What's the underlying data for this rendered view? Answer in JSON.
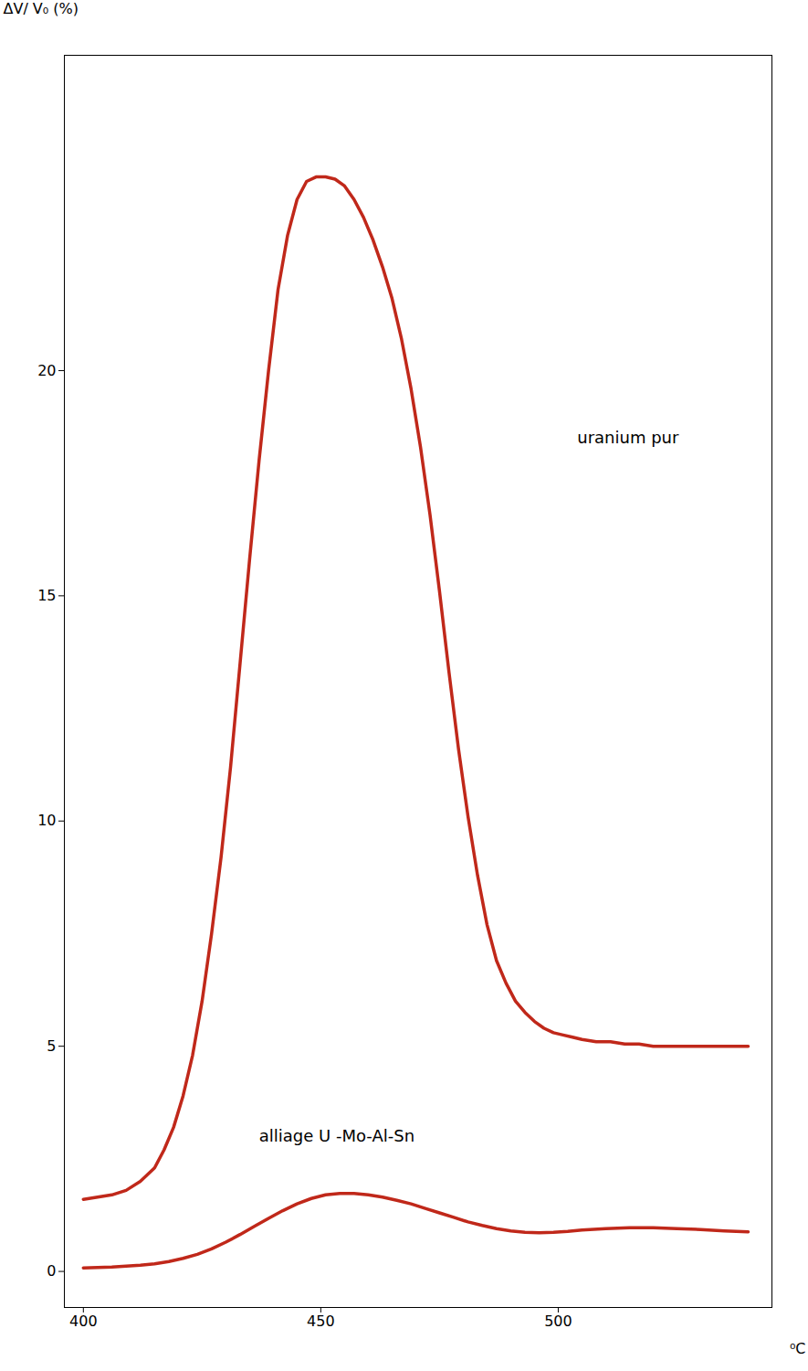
{
  "chart_data": {
    "type": "line",
    "xlabel": "⁰C",
    "ylabel": "ΔV/ V₀ (%)",
    "xlim": [
      396,
      545
    ],
    "xticks": [
      400,
      450,
      500
    ],
    "ylim": [
      -0.8,
      27
    ],
    "yticks": [
      0,
      5,
      10,
      15,
      20
    ],
    "grid": false,
    "series": [
      {
        "name": "uranium pur",
        "color": "#C0281A",
        "label": {
          "x": 504,
          "y": 18.5
        },
        "x": [
          400,
          403,
          406,
          409,
          412,
          415,
          417,
          419,
          421,
          423,
          425,
          427,
          429,
          431,
          433,
          435,
          437,
          439,
          441,
          443,
          445,
          447,
          449,
          451,
          453,
          455,
          457,
          459,
          461,
          463,
          465,
          467,
          469,
          471,
          473,
          475,
          477,
          479,
          481,
          483,
          485,
          487,
          489,
          491,
          493,
          495,
          497,
          499,
          501,
          503,
          505,
          508,
          511,
          514,
          517,
          520,
          525,
          530,
          535,
          540
        ],
        "values": [
          1.6,
          1.65,
          1.7,
          1.8,
          2.0,
          2.3,
          2.7,
          3.2,
          3.9,
          4.8,
          6.0,
          7.5,
          9.2,
          11.2,
          13.5,
          15.8,
          18.0,
          20.0,
          21.8,
          23.0,
          23.8,
          24.2,
          24.3,
          24.3,
          24.25,
          24.1,
          23.8,
          23.4,
          22.9,
          22.3,
          21.6,
          20.7,
          19.6,
          18.3,
          16.8,
          15.1,
          13.3,
          11.6,
          10.1,
          8.8,
          7.7,
          6.9,
          6.4,
          6.0,
          5.75,
          5.55,
          5.4,
          5.3,
          5.25,
          5.2,
          5.15,
          5.1,
          5.1,
          5.05,
          5.05,
          5.0,
          5.0,
          5.0,
          5.0,
          5.0
        ]
      },
      {
        "name": "alliage U -Mo-Al-Sn",
        "color": "#C0281A",
        "label": {
          "x": 437,
          "y": 3.0
        },
        "x": [
          400,
          403,
          406,
          409,
          412,
          415,
          418,
          421,
          424,
          427,
          430,
          433,
          436,
          439,
          442,
          445,
          448,
          451,
          454,
          457,
          460,
          463,
          466,
          469,
          472,
          475,
          478,
          481,
          484,
          487,
          490,
          493,
          496,
          499,
          502,
          505,
          510,
          515,
          520,
          525,
          530,
          535,
          540
        ],
        "values": [
          0.08,
          0.09,
          0.1,
          0.12,
          0.14,
          0.17,
          0.22,
          0.29,
          0.38,
          0.5,
          0.65,
          0.82,
          1.0,
          1.18,
          1.35,
          1.5,
          1.62,
          1.7,
          1.73,
          1.73,
          1.7,
          1.65,
          1.58,
          1.5,
          1.4,
          1.3,
          1.2,
          1.1,
          1.02,
          0.95,
          0.9,
          0.87,
          0.86,
          0.87,
          0.89,
          0.92,
          0.95,
          0.97,
          0.97,
          0.95,
          0.93,
          0.9,
          0.88
        ]
      }
    ]
  }
}
